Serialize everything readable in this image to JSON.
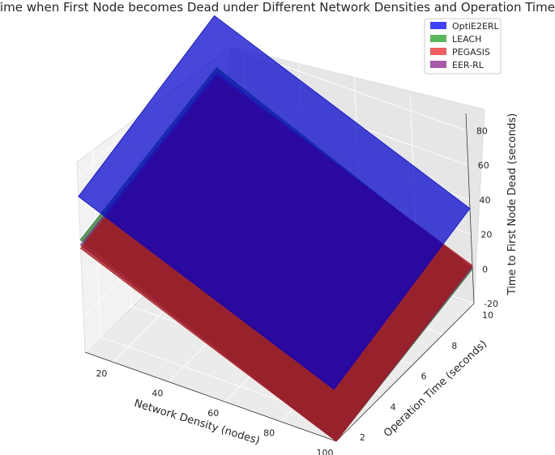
{
  "chart_data": {
    "type": "surface3d",
    "title": "Time when First Node becomes Dead under Different Network Densities and Operation Times",
    "xlabel": "Network Density (nodes)",
    "ylabel": "Operation Time (seconds)",
    "zlabel": "Time to First Node Dead (seconds)",
    "x_ticks": [
      20,
      40,
      60,
      80,
      100
    ],
    "y_ticks": [
      2,
      4,
      6,
      8,
      10
    ],
    "z_ticks": [
      -20,
      0,
      20,
      40,
      60,
      80
    ],
    "xlim": [
      10,
      100
    ],
    "ylim": [
      1,
      10
    ],
    "zlim": [
      -20,
      90
    ],
    "legend_position": "top-right",
    "grid": true,
    "series": [
      {
        "name": "OptiE2ERL",
        "color": "#0000cc",
        "legend_color": "#4040ff",
        "corners": {
          "x10_y1": 70,
          "x100_y1": 10,
          "x10_y10": 95,
          "x100_y10": 35
        }
      },
      {
        "name": "LEACH",
        "color": "#2a7a2a",
        "legend_color": "#5cb85c",
        "corners": {
          "x10_y1": 45,
          "x100_y1": -20,
          "x10_y10": 65,
          "x100_y10": 0
        }
      },
      {
        "name": "PEGASIS",
        "color": "#a51515",
        "legend_color": "#f06060",
        "corners": {
          "x10_y1": 40,
          "x100_y1": -20,
          "x10_y10": 60,
          "x100_y10": 2
        }
      },
      {
        "name": "EER-RL",
        "color": "#7a2f7a",
        "legend_color": "#a85aa8",
        "corners": {
          "x10_y1": 42,
          "x100_y1": -20,
          "x10_y10": 62,
          "x100_y10": 1
        }
      }
    ]
  }
}
